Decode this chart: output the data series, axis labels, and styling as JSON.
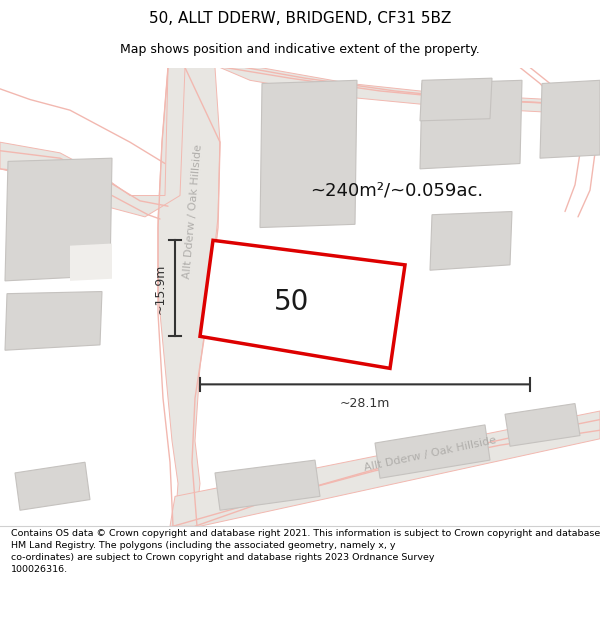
{
  "title": "50, ALLT DDERW, BRIDGEND, CF31 5BZ",
  "subtitle": "Map shows position and indicative extent of the property.",
  "area_label": "~240m²/~0.059ac.",
  "plot_number": "50",
  "width_label": "~28.1m",
  "height_label": "~15.9m",
  "footer": "Contains OS data © Crown copyright and database right 2021. This information is subject to Crown copyright and database rights 2023 and is reproduced with the permission of\nHM Land Registry. The polygons (including the associated geometry, namely x, y\nco-ordinates) are subject to Crown copyright and database rights 2023 Ordnance Survey\n100026316.",
  "bg_color": "#f0eeeb",
  "building_color": "#d8d6d3",
  "building_edge": "#c5c2bf",
  "plot_fill": "#ffffff",
  "plot_edge": "#dd0000",
  "road_fill": "#e8e6e2",
  "road_outline": "#f2b8b0",
  "street_label_color": "#b0aeab",
  "measure_color": "#333333",
  "title_fontsize": 11,
  "subtitle_fontsize": 9,
  "footer_fontsize": 6.8,
  "area_fontsize": 13,
  "plot_num_fontsize": 20,
  "street_fontsize": 8
}
